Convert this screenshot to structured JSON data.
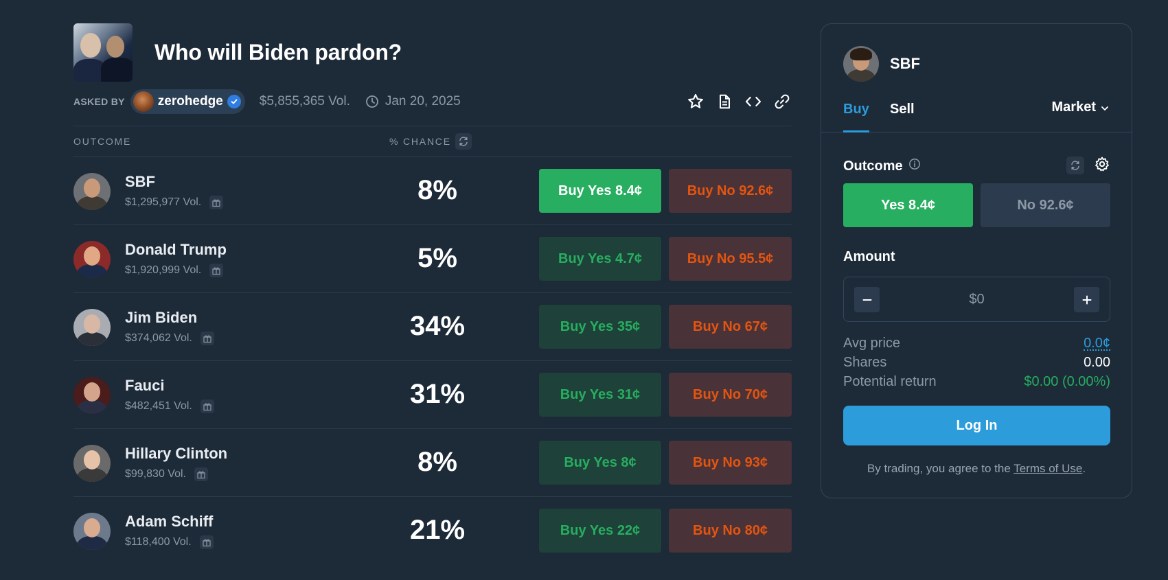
{
  "market": {
    "title": "Who will Biden pardon?",
    "asked_by_label": "ASKED BY",
    "creator": "zerohedge",
    "volume": "$5,855,365 Vol.",
    "end_date": "Jan 20, 2025"
  },
  "table": {
    "outcome_header": "OUTCOME",
    "chance_header": "% CHANCE"
  },
  "outcomes": [
    {
      "name": "SBF",
      "volume": "$1,295,977 Vol.",
      "chance": "8%",
      "buy_yes": "Buy Yes 8.4¢",
      "buy_no": "Buy No 92.6¢"
    },
    {
      "name": "Donald Trump",
      "volume": "$1,920,999 Vol.",
      "chance": "5%",
      "buy_yes": "Buy Yes 4.7¢",
      "buy_no": "Buy No 95.5¢"
    },
    {
      "name": "Jim Biden",
      "volume": "$374,062 Vol.",
      "chance": "34%",
      "buy_yes": "Buy Yes 35¢",
      "buy_no": "Buy No 67¢"
    },
    {
      "name": "Fauci",
      "volume": "$482,451 Vol.",
      "chance": "31%",
      "buy_yes": "Buy Yes 31¢",
      "buy_no": "Buy No 70¢"
    },
    {
      "name": "Hillary Clinton",
      "volume": "$99,830 Vol.",
      "chance": "8%",
      "buy_yes": "Buy Yes 8¢",
      "buy_no": "Buy No 93¢"
    },
    {
      "name": "Adam Schiff",
      "volume": "$118,400 Vol.",
      "chance": "21%",
      "buy_yes": "Buy Yes 22¢",
      "buy_no": "Buy No 80¢"
    }
  ],
  "trade": {
    "selected_outcome": "SBF",
    "tab_buy": "Buy",
    "tab_sell": "Sell",
    "order_type": "Market",
    "outcome_label": "Outcome",
    "yes_option": "Yes 8.4¢",
    "no_option": "No 92.6¢",
    "amount_label": "Amount",
    "amount_placeholder": "$0",
    "avg_price_label": "Avg price",
    "avg_price_value": "0.0¢",
    "shares_label": "Shares",
    "shares_value": "0.00",
    "potential_return_label": "Potential return",
    "potential_return_value": "$0.00 (0.00%)",
    "login_label": "Log In",
    "terms_prefix": "By trading, you agree to the ",
    "terms_link": "Terms of Use",
    "terms_suffix": "."
  },
  "colors": {
    "background": "#1d2a38",
    "yes_green": "#27ae60",
    "no_orange": "#e4550f",
    "accent_blue": "#2d9cdb",
    "muted_text": "#8d99a7"
  },
  "avatar_palettes": [
    {
      "head": "#c99a7a",
      "body": "#3f3a34",
      "bg": "#6d7074"
    },
    {
      "head": "#e0a884",
      "body": "#1c2a4a",
      "bg": "#8c2a2a"
    },
    {
      "head": "#d8b8a4",
      "body": "#2b2f38",
      "bg": "#a9adb3"
    },
    {
      "head": "#d4a58c",
      "body": "#2a2f45",
      "bg": "#4a1c1c"
    },
    {
      "head": "#e6c3a8",
      "body": "#3a3a3a",
      "bg": "#6a6a6a"
    },
    {
      "head": "#d9ab8f",
      "body": "#1f2a44",
      "bg": "#6c7a8c"
    }
  ]
}
